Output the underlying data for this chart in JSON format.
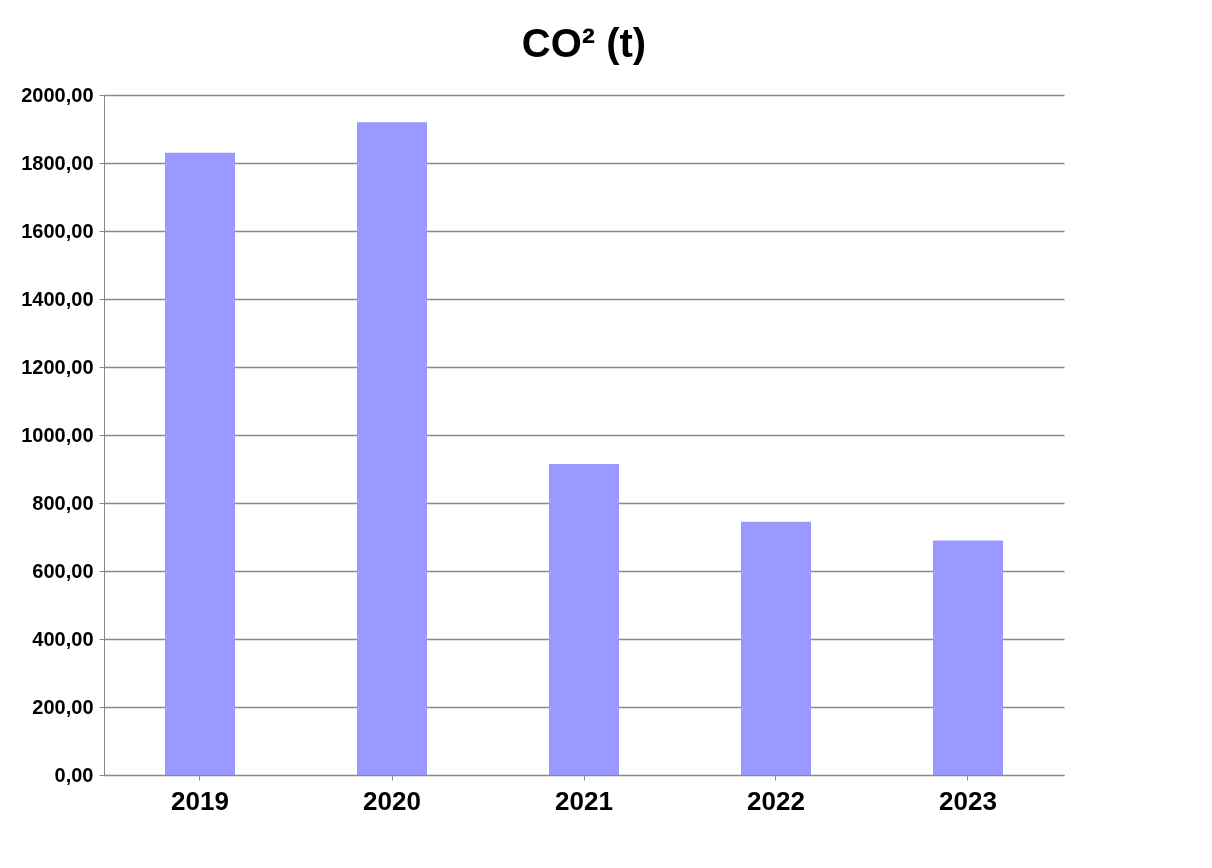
{
  "chart_data": {
    "type": "bar",
    "title": "CO² (t)",
    "categories": [
      "2019",
      "2020",
      "2021",
      "2022",
      "2023"
    ],
    "values": [
      1830,
      1920,
      915,
      745,
      690
    ],
    "color": "#9999ff",
    "ylim": [
      0,
      2000
    ],
    "yticks": [
      {
        "value": 0,
        "label": "0,00"
      },
      {
        "value": 200,
        "label": "200,00"
      },
      {
        "value": 400,
        "label": "400,00"
      },
      {
        "value": 600,
        "label": "600,00"
      },
      {
        "value": 800,
        "label": "800,00"
      },
      {
        "value": 1000,
        "label": "1000,00"
      },
      {
        "value": 1200,
        "label": "1200,00"
      },
      {
        "value": 1400,
        "label": "1400,00"
      },
      {
        "value": 1600,
        "label": "1600,00"
      },
      {
        "value": 1800,
        "label": "1800,00"
      },
      {
        "value": 2000,
        "label": "2000,00"
      }
    ],
    "grid": "y"
  }
}
